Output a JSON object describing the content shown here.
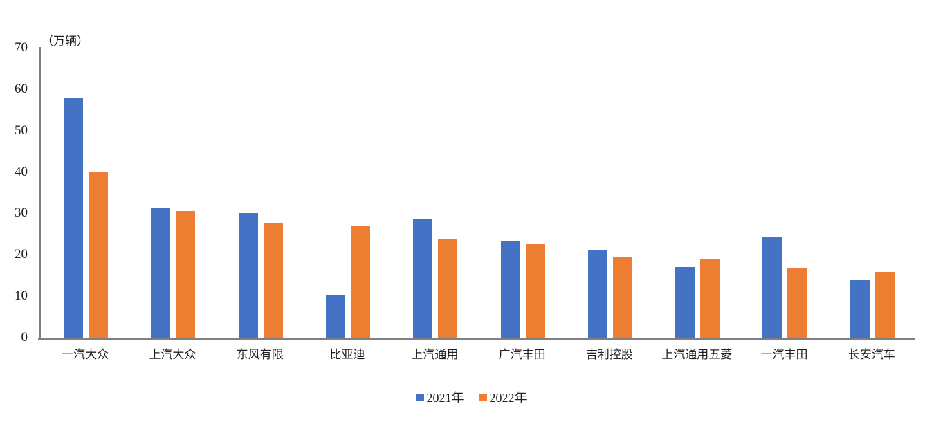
{
  "chart_data": {
    "type": "bar",
    "title": "",
    "unit_label": "（万辆）",
    "xlabel": "",
    "ylabel": "（万辆）",
    "categories": [
      "一汽大众",
      "上汽大众",
      "东风有限",
      "比亚迪",
      "上汽通用",
      "广汽丰田",
      "吉利控股",
      "上汽通用五菱",
      "一汽丰田",
      "长安汽车"
    ],
    "series": [
      {
        "name": "2021年",
        "color": "#4472C4",
        "values": [
          57.8,
          31.2,
          30.1,
          10.4,
          28.6,
          23.2,
          21.1,
          17.1,
          24.3,
          13.9
        ]
      },
      {
        "name": "2022年",
        "color": "#ED7D31",
        "values": [
          40.0,
          30.5,
          27.5,
          27.0,
          23.9,
          22.7,
          19.6,
          18.8,
          16.8,
          15.8
        ]
      }
    ],
    "ylim": [
      0,
      70
    ],
    "yticks": [
      0,
      10,
      20,
      30,
      40,
      50,
      60,
      70
    ],
    "grid": false,
    "legend_position": "bottom",
    "axis_color": "#808080",
    "text_color": "#1f1f1f"
  }
}
